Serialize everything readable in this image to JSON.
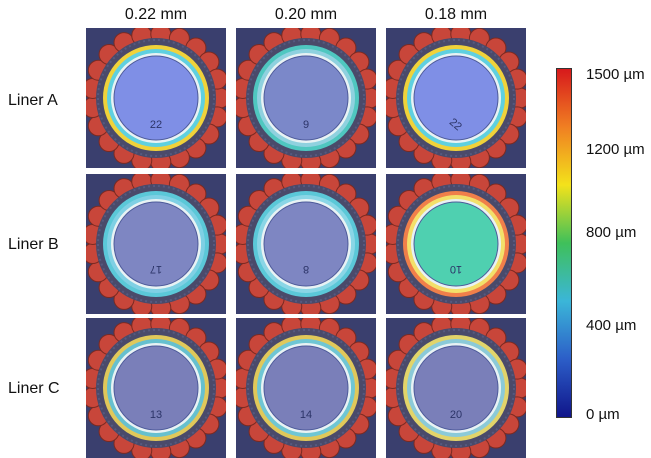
{
  "columns": [
    "0.22 mm",
    "0.20 mm",
    "0.18 mm"
  ],
  "rows": [
    "Liner A",
    "Liner B",
    "Liner C"
  ],
  "colorbar": {
    "ticks": [
      "1500 µm",
      "1200 µm",
      "800 µm",
      "400 µm",
      "0 µm"
    ],
    "gradient": [
      "#d7191c",
      "#f07f22",
      "#f3e21b",
      "#3fc05a",
      "#3bb6d8",
      "#2c5ec8",
      "#10158a"
    ]
  },
  "tiles": [
    {
      "id": "a-022",
      "number": "22"
    },
    {
      "id": "a-020",
      "number": "9"
    },
    {
      "id": "a-018",
      "number": "22"
    },
    {
      "id": "b-022",
      "number": "17"
    },
    {
      "id": "b-020",
      "number": "8"
    },
    {
      "id": "b-018",
      "number": "10"
    },
    {
      "id": "c-022",
      "number": "13"
    },
    {
      "id": "c-020",
      "number": "14"
    },
    {
      "id": "c-018",
      "number": "20"
    }
  ]
}
